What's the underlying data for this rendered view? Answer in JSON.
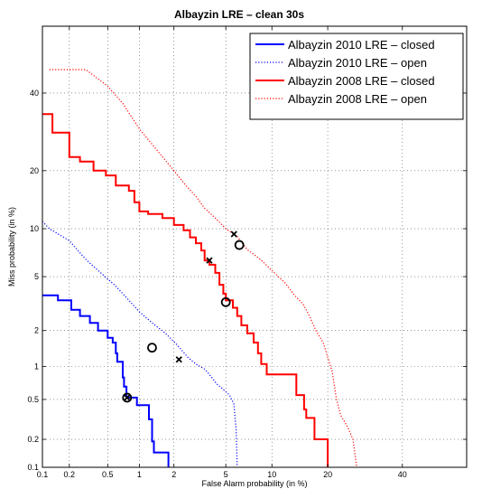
{
  "chart_data": {
    "type": "line",
    "title": "Albayzin LRE – clean 30s",
    "xlabel": "False Alarm probability (in %)",
    "ylabel": "Miss probability (in %)",
    "scale": "normal-deviate (DET)",
    "xlim": [
      0.1,
      60
    ],
    "ylim": [
      0.1,
      60
    ],
    "x_ticks": [
      "0.1",
      "0.2",
      "0.5",
      "1",
      "2",
      "5",
      "10",
      "20",
      "40"
    ],
    "y_ticks": [
      "0.1",
      "0.2",
      "0.5",
      "1",
      "2",
      "5",
      "10",
      "20",
      "40"
    ],
    "grid": true,
    "legend_position": "top-right",
    "series": [
      {
        "name": "Albayzin 2010 LRE – closed",
        "color": "#0000ff",
        "style": "solid",
        "points": [
          [
            0.1,
            3.7
          ],
          [
            0.15,
            3.7
          ],
          [
            0.15,
            3.4
          ],
          [
            0.21,
            3.4
          ],
          [
            0.21,
            2.9
          ],
          [
            0.26,
            2.9
          ],
          [
            0.26,
            2.6
          ],
          [
            0.33,
            2.6
          ],
          [
            0.33,
            2.3
          ],
          [
            0.4,
            2.3
          ],
          [
            0.4,
            2.0
          ],
          [
            0.5,
            2.0
          ],
          [
            0.5,
            1.75
          ],
          [
            0.56,
            1.75
          ],
          [
            0.56,
            1.6
          ],
          [
            0.6,
            1.6
          ],
          [
            0.6,
            1.3
          ],
          [
            0.62,
            1.3
          ],
          [
            0.62,
            1.1
          ],
          [
            0.7,
            1.1
          ],
          [
            0.7,
            0.8
          ],
          [
            0.72,
            0.8
          ],
          [
            0.72,
            0.66
          ],
          [
            0.76,
            0.66
          ],
          [
            0.76,
            0.52
          ],
          [
            0.95,
            0.52
          ],
          [
            0.95,
            0.44
          ],
          [
            1.22,
            0.44
          ],
          [
            1.22,
            0.32
          ],
          [
            1.3,
            0.32
          ],
          [
            1.3,
            0.19
          ],
          [
            1.35,
            0.19
          ],
          [
            1.35,
            0.145
          ],
          [
            1.8,
            0.145
          ],
          [
            1.8,
            0.1
          ]
        ]
      },
      {
        "name": "Albayzin 2010 LRE – open",
        "color": "#0000ff",
        "style": "dotted",
        "points": [
          [
            0.1,
            11
          ],
          [
            0.12,
            10
          ],
          [
            0.2,
            8.5
          ],
          [
            0.3,
            6.5
          ],
          [
            0.4,
            5.5
          ],
          [
            0.6,
            4.3
          ],
          [
            0.8,
            3.4
          ],
          [
            1.0,
            2.8
          ],
          [
            1.3,
            2.3
          ],
          [
            1.7,
            1.9
          ],
          [
            2.1,
            1.55
          ],
          [
            2.6,
            1.2
          ],
          [
            3.0,
            1.05
          ],
          [
            3.5,
            0.95
          ],
          [
            3.9,
            0.82
          ],
          [
            4.3,
            0.7
          ],
          [
            4.8,
            0.62
          ],
          [
            5.3,
            0.55
          ],
          [
            5.5,
            0.5
          ],
          [
            5.7,
            0.45
          ],
          [
            5.8,
            0.33
          ],
          [
            5.9,
            0.25
          ],
          [
            6.0,
            0.1
          ]
        ]
      },
      {
        "name": "Albayzin 2008 LRE – closed",
        "color": "#ff0000",
        "style": "solid",
        "points": [
          [
            0.1,
            34
          ],
          [
            0.13,
            34
          ],
          [
            0.13,
            29
          ],
          [
            0.2,
            29
          ],
          [
            0.2,
            23
          ],
          [
            0.26,
            23
          ],
          [
            0.26,
            22
          ],
          [
            0.36,
            22
          ],
          [
            0.36,
            20
          ],
          [
            0.48,
            20
          ],
          [
            0.48,
            19
          ],
          [
            0.6,
            19
          ],
          [
            0.6,
            17
          ],
          [
            0.8,
            17
          ],
          [
            0.8,
            16
          ],
          [
            0.9,
            16
          ],
          [
            0.9,
            14
          ],
          [
            1.0,
            14
          ],
          [
            1.0,
            12.5
          ],
          [
            1.2,
            12.5
          ],
          [
            1.2,
            12.1
          ],
          [
            1.6,
            12.1
          ],
          [
            1.6,
            11.5
          ],
          [
            2.0,
            11.5
          ],
          [
            2.0,
            10.5
          ],
          [
            2.4,
            10.5
          ],
          [
            2.4,
            9.8
          ],
          [
            2.7,
            9.8
          ],
          [
            2.7,
            8.9
          ],
          [
            3.0,
            8.9
          ],
          [
            3.0,
            8.2
          ],
          [
            3.3,
            8.2
          ],
          [
            3.3,
            7.4
          ],
          [
            3.5,
            7.4
          ],
          [
            3.5,
            6.4
          ],
          [
            3.8,
            6.4
          ],
          [
            3.8,
            6.0
          ],
          [
            4.2,
            6.0
          ],
          [
            4.2,
            5.3
          ],
          [
            4.5,
            5.3
          ],
          [
            4.5,
            4.4
          ],
          [
            4.8,
            4.4
          ],
          [
            4.8,
            3.8
          ],
          [
            5.0,
            3.8
          ],
          [
            5.0,
            3.4
          ],
          [
            5.6,
            3.4
          ],
          [
            5.6,
            3.0
          ],
          [
            6.0,
            3.0
          ],
          [
            6.0,
            2.6
          ],
          [
            6.4,
            2.6
          ],
          [
            6.4,
            2.2
          ],
          [
            7.0,
            2.2
          ],
          [
            7.0,
            1.9
          ],
          [
            7.7,
            1.9
          ],
          [
            7.7,
            1.6
          ],
          [
            8.2,
            1.6
          ],
          [
            8.2,
            1.3
          ],
          [
            8.6,
            1.3
          ],
          [
            8.6,
            1.05
          ],
          [
            9.3,
            1.05
          ],
          [
            9.3,
            0.85
          ],
          [
            13.8,
            0.85
          ],
          [
            13.8,
            0.55
          ],
          [
            15.2,
            0.55
          ],
          [
            15.2,
            0.4
          ],
          [
            15.6,
            0.4
          ],
          [
            15.6,
            0.33
          ],
          [
            17.2,
            0.33
          ],
          [
            17.2,
            0.2
          ],
          [
            20.0,
            0.2
          ],
          [
            20.0,
            0.1
          ]
        ]
      },
      {
        "name": "Albayzin 2008 LRE – open",
        "color": "#ff0000",
        "style": "dotted",
        "points": [
          [
            0.12,
            47
          ],
          [
            0.3,
            47
          ],
          [
            0.5,
            42
          ],
          [
            0.7,
            37
          ],
          [
            1.0,
            30
          ],
          [
            1.5,
            24
          ],
          [
            2.0,
            20
          ],
          [
            2.5,
            17
          ],
          [
            3.0,
            15
          ],
          [
            3.5,
            13
          ],
          [
            4.2,
            11.5
          ],
          [
            5.0,
            10
          ],
          [
            6.0,
            9
          ],
          [
            7.0,
            7.5
          ],
          [
            8.5,
            6.5
          ],
          [
            10,
            5.5
          ],
          [
            12,
            4.5
          ],
          [
            13.5,
            3.7
          ],
          [
            15,
            3.2
          ],
          [
            16,
            2.7
          ],
          [
            17.5,
            2.0
          ],
          [
            19,
            1.6
          ],
          [
            20,
            1.2
          ],
          [
            21,
            0.9
          ],
          [
            22,
            0.5
          ],
          [
            23,
            0.35
          ],
          [
            24,
            0.3
          ],
          [
            25,
            0.25
          ],
          [
            26,
            0.2
          ],
          [
            27,
            0.1
          ]
        ]
      }
    ],
    "markers": [
      {
        "series": "Albayzin 2010 LRE – closed",
        "shape": "circle",
        "x": 0.77,
        "y": 0.52
      },
      {
        "series": "Albayzin 2010 LRE – closed",
        "shape": "x",
        "x": 0.77,
        "y": 0.52
      },
      {
        "series": "Albayzin 2010 LRE – open",
        "shape": "circle",
        "x": 1.3,
        "y": 1.45
      },
      {
        "series": "Albayzin 2010 LRE – open",
        "shape": "x",
        "x": 2.2,
        "y": 1.15
      },
      {
        "series": "Albayzin 2008 LRE – closed",
        "shape": "circle",
        "x": 5.0,
        "y": 3.3
      },
      {
        "series": "Albayzin 2008 LRE – closed",
        "shape": "x",
        "x": 3.8,
        "y": 6.4
      },
      {
        "series": "Albayzin 2008 LRE – open",
        "shape": "circle",
        "x": 6.2,
        "y": 8.0
      },
      {
        "series": "Albayzin 2008 LRE – open",
        "shape": "x",
        "x": 5.7,
        "y": 9.3
      }
    ]
  }
}
